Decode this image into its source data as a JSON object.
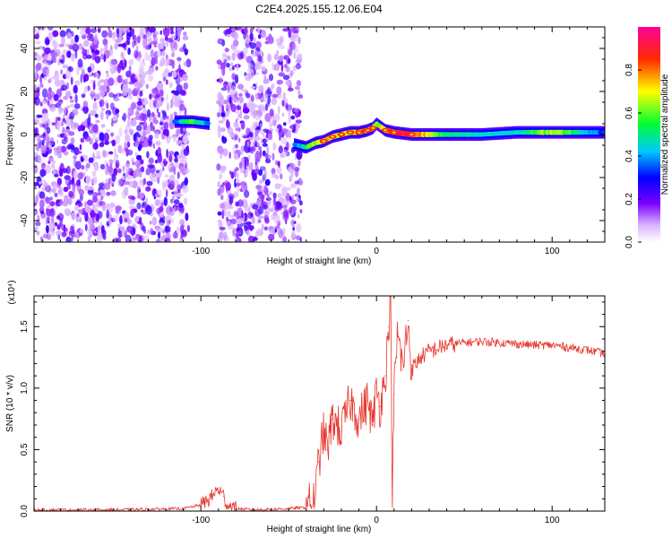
{
  "figure": {
    "title": "C2E4.2025.155.12.06.E04"
  },
  "chart_data": [
    {
      "type": "heatmap",
      "title": "C2E4.2025.155.12.06.E04",
      "xlabel": "Height of straight line (km)",
      "ylabel": "Frequency (Hz)",
      "xlim": [
        -195,
        130
      ],
      "ylim": [
        -50,
        50
      ],
      "xticks": [
        -100,
        0,
        100
      ],
      "xtick_labels": [
        "-100",
        "0",
        "100"
      ],
      "yticks": [
        -40,
        -20,
        0,
        20,
        40
      ],
      "ytick_labels": [
        "-40",
        "-20",
        "0",
        "20",
        "40"
      ],
      "grid": false,
      "colorbar": {
        "label": "Normalized spectral amplitude",
        "range": [
          0,
          1
        ],
        "ticks": [
          0.0,
          0.2,
          0.4,
          0.6,
          0.8
        ],
        "tick_labels": [
          "0.0",
          "0.2",
          "0.4",
          "0.6",
          "0.8"
        ],
        "colormap": "rainbow (white-violet-blue-cyan-green-yellow-red-magenta)"
      },
      "noise_regions_x": [
        [
          -195,
          -107
        ],
        [
          -90,
          -43
        ]
      ],
      "ridge": {
        "x": [
          -115,
          -105,
          -95,
          -45,
          -40,
          -35,
          -30,
          -25,
          -20,
          -15,
          -10,
          -5,
          -2,
          0,
          5,
          10,
          20,
          40,
          60,
          80,
          100,
          115,
          130
        ],
        "y": [
          6,
          6,
          5,
          -5,
          -6,
          -4,
          -3,
          -1,
          0,
          1,
          1,
          2,
          3,
          5,
          2,
          1,
          0,
          0,
          0,
          1,
          1,
          1,
          1
        ],
        "amplitude": [
          0.35,
          0.6,
          0.35,
          0.35,
          0.55,
          0.7,
          0.8,
          0.75,
          0.85,
          0.8,
          0.85,
          0.9,
          0.85,
          0.6,
          0.8,
          0.95,
          0.95,
          0.5,
          0.45,
          0.45,
          0.7,
          0.5,
          0.3
        ]
      }
    },
    {
      "type": "line",
      "xlabel": "Height of straight line (km)",
      "ylabel": "SNR (10 * v/v)",
      "y_multiplier": "(x10⁴)",
      "xlim": [
        -195,
        130
      ],
      "ylim": [
        0,
        1.75
      ],
      "xticks": [
        -100,
        0,
        100
      ],
      "xtick_labels": [
        "-100",
        "0",
        "100"
      ],
      "yticks": [
        0.0,
        0.5,
        1.0,
        1.5
      ],
      "ytick_labels": [
        "0.0",
        "0.5",
        "1.0",
        "1.5"
      ],
      "grid": false,
      "series": [
        {
          "color": "#e8372f",
          "x": [
            -195,
            -150,
            -110,
            -100,
            -95,
            -90,
            -87,
            -85,
            -80,
            -70,
            -50,
            -40,
            -35,
            -33,
            -30,
            -28,
            -25,
            -20,
            -15,
            -10,
            -5,
            -2,
            0,
            2,
            5,
            7,
            8,
            9,
            10,
            12,
            15,
            18,
            20,
            25,
            30,
            40,
            50,
            60,
            70,
            80,
            90,
            100,
            110,
            120,
            130
          ],
          "y": [
            0.01,
            0.01,
            0.02,
            0.05,
            0.1,
            0.18,
            0.12,
            0.05,
            0.02,
            0.01,
            0.02,
            0.03,
            0.1,
            0.4,
            0.65,
            0.5,
            0.75,
            0.65,
            0.9,
            0.75,
            0.9,
            0.7,
            1.0,
            0.85,
            1.1,
            1.5,
            1.74,
            0.15,
            0.95,
            1.45,
            1.15,
            1.55,
            1.15,
            1.25,
            1.3,
            1.35,
            1.37,
            1.38,
            1.37,
            1.36,
            1.35,
            1.35,
            1.33,
            1.31,
            1.28
          ]
        }
      ]
    }
  ]
}
